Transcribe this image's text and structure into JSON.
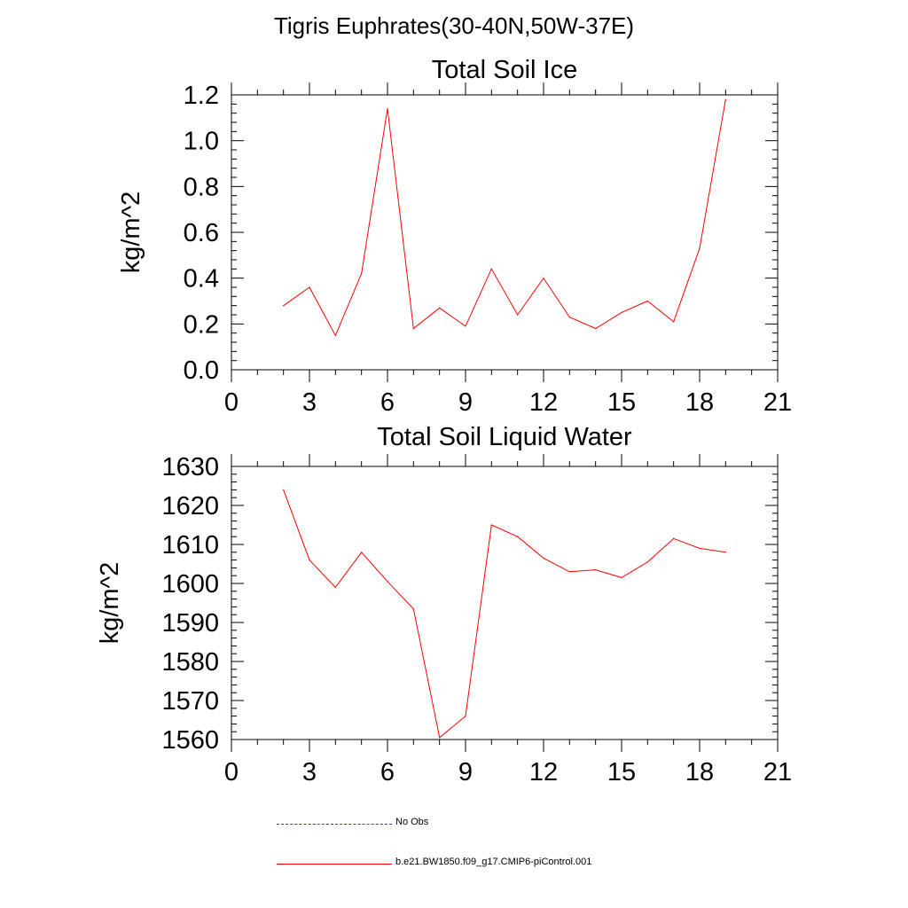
{
  "figure": {
    "title": "Tigris Euphrates(30-40N,50W-37E)"
  },
  "legend": [
    {
      "label": "No Obs",
      "color": "#3b3b8f",
      "style": "dashed"
    },
    {
      "label": "b.e21.BW1850.f09_g17.CMIP6-piControl.001",
      "color": "#ff0000",
      "style": "solid"
    }
  ],
  "chart_data": [
    {
      "type": "line",
      "title": "Total Soil Ice",
      "xlabel": "",
      "ylabel": "kg/m^2",
      "xlim": [
        0,
        21
      ],
      "ylim": [
        0.0,
        1.2
      ],
      "xticks": [
        0,
        3,
        6,
        9,
        12,
        15,
        18,
        21
      ],
      "yticks": [
        0.0,
        0.2,
        0.4,
        0.6,
        0.8,
        1.0,
        1.2
      ],
      "ytick_labels": [
        "0.0",
        "0.2",
        "0.4",
        "0.6",
        "0.8",
        "1.0",
        "1.2"
      ],
      "grid": false,
      "series": [
        {
          "name": "b.e21.BW1850.f09_g17.CMIP6-piControl.001",
          "color": "#ff0000",
          "x": [
            2,
            3,
            4,
            5,
            6,
            7,
            8,
            9,
            10,
            11,
            12,
            13,
            14,
            15,
            16,
            17,
            18,
            19
          ],
          "y": [
            0.28,
            0.36,
            0.15,
            0.42,
            1.14,
            0.18,
            0.27,
            0.19,
            0.44,
            0.24,
            0.4,
            0.23,
            0.18,
            0.25,
            0.3,
            0.21,
            0.53,
            1.18
          ]
        }
      ]
    },
    {
      "type": "line",
      "title": "Total Soil Liquid Water",
      "xlabel": "",
      "ylabel": "kg/m^2",
      "xlim": [
        0,
        21
      ],
      "ylim": [
        1560,
        1630
      ],
      "xticks": [
        0,
        3,
        6,
        9,
        12,
        15,
        18,
        21
      ],
      "yticks": [
        1560,
        1570,
        1580,
        1590,
        1600,
        1610,
        1620,
        1630
      ],
      "ytick_labels": [
        "1560",
        "1570",
        "1580",
        "1590",
        "1600",
        "1610",
        "1620",
        "1630"
      ],
      "grid": false,
      "series": [
        {
          "name": "b.e21.BW1850.f09_g17.CMIP6-piControl.001",
          "color": "#ff0000",
          "x": [
            2,
            3,
            4,
            5,
            6,
            7,
            8,
            9,
            10,
            11,
            12,
            13,
            14,
            15,
            16,
            17,
            18,
            19
          ],
          "y": [
            1624,
            1606,
            1599,
            1608,
            1600.5,
            1593.5,
            1560.5,
            1566,
            1615,
            1612,
            1606.5,
            1603,
            1603.5,
            1601.5,
            1605.5,
            1611.5,
            1609,
            1608
          ]
        }
      ]
    }
  ]
}
